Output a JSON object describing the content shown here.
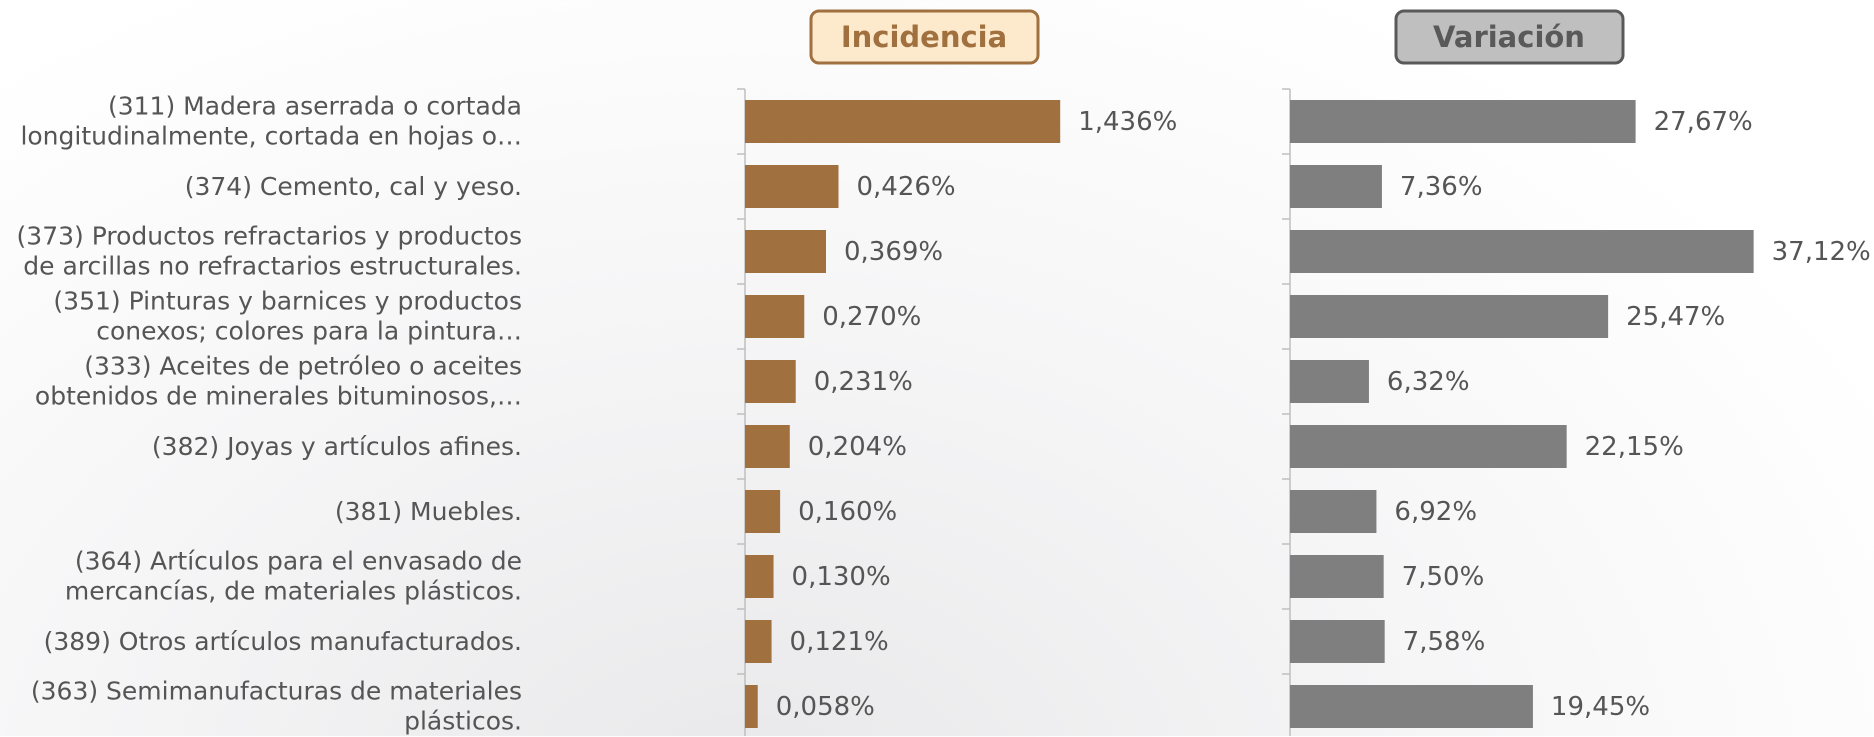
{
  "chart_data": [
    {
      "type": "bar",
      "orientation": "horizontal",
      "title": "Incidencia",
      "color": "#a0703f",
      "categories": [
        "(311) Madera aserrada o cortada\nlongitudinalmente, cortada en hojas o…",
        "(374) Cemento, cal y yeso.",
        "(373) Productos refractarios y productos\nde arcillas no refractarios estructurales.",
        "(351) Pinturas y barnices y productos\nconexos; colores para la pintura…",
        "(333) Aceites de petróleo o aceites\nobtenidos de minerales bituminosos,…",
        "(382) Joyas y artículos afines.",
        "(381) Muebles.",
        "(364) Artículos para el envasado de\nmercancías, de materiales plásticos.",
        "(389) Otros artículos manufacturados.",
        "(363) Semimanufacturas de materiales\nplásticos."
      ],
      "values": [
        1.436,
        0.426,
        0.369,
        0.27,
        0.231,
        0.204,
        0.16,
        0.13,
        0.121,
        0.058
      ],
      "value_labels": [
        "1,436%",
        "0,426%",
        "0,369%",
        "0,270%",
        "0,231%",
        "0,204%",
        "0,160%",
        "0,130%",
        "0,121%",
        "0,058%"
      ]
    },
    {
      "type": "bar",
      "orientation": "horizontal",
      "title": "Variación",
      "color": "#7f7f7f",
      "values": [
        27.67,
        7.36,
        37.12,
        25.47,
        6.32,
        22.15,
        6.92,
        7.5,
        7.58,
        19.45
      ],
      "value_labels": [
        "27,67%",
        "7,36%",
        "37,12%",
        "25,47%",
        "6,32%",
        "22,15%",
        "6,92%",
        "7,50%",
        "7,58%",
        "19,45%"
      ]
    }
  ]
}
